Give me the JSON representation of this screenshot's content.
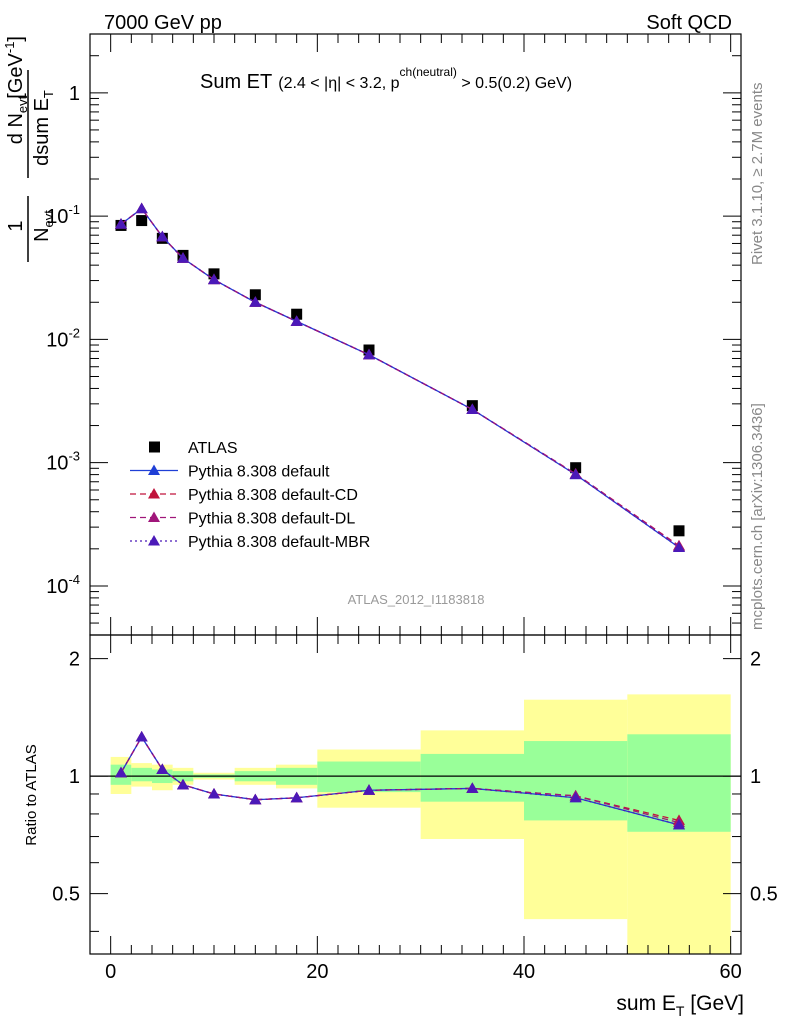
{
  "header": {
    "left": "7000 GeV pp",
    "right": "Soft QCD"
  },
  "title": {
    "main": "Sum ET",
    "detail_pre": "(2.4 < |η| < 3.2, p",
    "detail_sup": "ch(neutral)",
    "detail_post": " > 0.5(0.2) GeV)"
  },
  "side_labels": {
    "rivet": "Rivet 3.1.10, ≥ 2.7M events",
    "mcplots": "mcplots.cern.ch [arXiv:1306.3436]"
  },
  "analysis_id": "ATLAS_2012_I1183818",
  "y_label": {
    "frac_num": "1",
    "frac_den_main": "N",
    "frac_den_sub": "evt",
    "deriv_num_main": "d N",
    "deriv_num_sub": "evt",
    "deriv_den_main": "dsum E",
    "deriv_den_sub": "T",
    "unit_main": "[GeV",
    "unit_sup": "-1",
    "unit_close": "]"
  },
  "ratio_label": "Ratio to ATLAS",
  "x_label": {
    "main": "sum E",
    "sub": "T",
    "unit": " [GeV]"
  },
  "legend": [
    {
      "label": "ATLAS",
      "color": "#000000",
      "marker": "square",
      "line": "none"
    },
    {
      "label": "Pythia 8.308 default",
      "color": "#1f3fd6",
      "marker": "triangle",
      "line": "solid"
    },
    {
      "label": "Pythia 8.308 default-CD",
      "color": "#c0143c",
      "marker": "triangle",
      "line": "dashed"
    },
    {
      "label": "Pythia 8.308 default-DL",
      "color": "#a0167a",
      "marker": "triangle",
      "line": "dashed"
    },
    {
      "label": "Pythia 8.308 default-MBR",
      "color": "#4b19b8",
      "marker": "triangle",
      "line": "dotted"
    }
  ],
  "chart_data": {
    "type": "scatter",
    "x_edges": [
      0,
      2,
      4,
      6,
      8,
      12,
      16,
      20,
      30,
      40,
      50,
      60
    ],
    "x": [
      1,
      3,
      5,
      7,
      10,
      14,
      18,
      25,
      35,
      45,
      55
    ],
    "xlim": [
      -2,
      61
    ],
    "ylim_main": [
      4e-05,
      3
    ],
    "ylim_ratio": [
      0.35,
      2.3
    ],
    "y_log": true,
    "main_ticks": [
      {
        "v": 1,
        "mant": "1",
        "exp": ""
      },
      {
        "v": 0.1,
        "mant": "10",
        "exp": "-1"
      },
      {
        "v": 0.01,
        "mant": "10",
        "exp": "-2"
      },
      {
        "v": 0.001,
        "mant": "10",
        "exp": "-3"
      },
      {
        "v": 0.0001,
        "mant": "10",
        "exp": "-4"
      }
    ],
    "ratio_ticks": [
      {
        "v": 2,
        "label": "2"
      },
      {
        "v": 1,
        "label": "1"
      },
      {
        "v": 0.5,
        "label": "0.5"
      }
    ],
    "x_ticks": [
      {
        "v": 0,
        "label": "0"
      },
      {
        "v": 20,
        "label": "20"
      },
      {
        "v": 40,
        "label": "40"
      },
      {
        "v": 60,
        "label": "60"
      }
    ],
    "series": [
      {
        "name": "ATLAS",
        "values": [
          0.084,
          0.092,
          0.066,
          0.048,
          0.034,
          0.023,
          0.016,
          0.0082,
          0.0029,
          0.00091,
          0.00028
        ]
      },
      {
        "name": "Pythia 8.308 default",
        "values": [
          0.086,
          0.115,
          0.068,
          0.0455,
          0.0305,
          0.02,
          0.014,
          0.0075,
          0.0027,
          0.0008,
          0.000205
        ]
      },
      {
        "name": "Pythia 8.308 default-CD",
        "values": [
          0.086,
          0.115,
          0.068,
          0.0455,
          0.0305,
          0.02,
          0.014,
          0.0075,
          0.0027,
          0.00081,
          0.000212
        ]
      },
      {
        "name": "Pythia 8.308 default-DL",
        "values": [
          0.086,
          0.115,
          0.068,
          0.0455,
          0.0305,
          0.02,
          0.014,
          0.0075,
          0.0027,
          0.00081,
          0.00021
        ]
      },
      {
        "name": "Pythia 8.308 default-MBR",
        "values": [
          0.086,
          0.115,
          0.068,
          0.0455,
          0.0305,
          0.02,
          0.014,
          0.0075,
          0.0027,
          0.0008,
          0.000205
        ]
      }
    ],
    "ratios": [
      {
        "name": "Pythia 8.308 default",
        "values": [
          1.02,
          1.26,
          1.04,
          0.95,
          0.9,
          0.87,
          0.88,
          0.92,
          0.93,
          0.88,
          0.75
        ]
      },
      {
        "name": "Pythia 8.308 default-CD",
        "values": [
          1.02,
          1.26,
          1.04,
          0.95,
          0.9,
          0.87,
          0.88,
          0.92,
          0.93,
          0.89,
          0.77
        ]
      },
      {
        "name": "Pythia 8.308 default-DL",
        "values": [
          1.02,
          1.26,
          1.04,
          0.95,
          0.9,
          0.87,
          0.88,
          0.92,
          0.93,
          0.89,
          0.76
        ]
      },
      {
        "name": "Pythia 8.308 default-MBR",
        "values": [
          1.02,
          1.26,
          1.04,
          0.95,
          0.9,
          0.87,
          0.88,
          0.92,
          0.93,
          0.88,
          0.75
        ]
      }
    ],
    "band_green": [
      [
        0.95,
        1.07
      ],
      [
        0.97,
        1.05
      ],
      [
        0.96,
        1.04
      ],
      [
        0.97,
        1.03
      ],
      [
        0.99,
        1.01
      ],
      [
        0.97,
        1.03
      ],
      [
        0.95,
        1.05
      ],
      [
        0.91,
        1.09
      ],
      [
        0.86,
        1.14
      ],
      [
        0.77,
        1.23
      ],
      [
        0.72,
        1.28
      ]
    ],
    "band_yellow": [
      [
        0.9,
        1.12
      ],
      [
        0.94,
        1.08
      ],
      [
        0.92,
        1.07
      ],
      [
        0.95,
        1.05
      ],
      [
        0.98,
        1.02
      ],
      [
        0.95,
        1.05
      ],
      [
        0.93,
        1.07
      ],
      [
        0.83,
        1.17
      ],
      [
        0.69,
        1.31
      ],
      [
        0.43,
        1.57
      ],
      [
        0.33,
        1.62
      ]
    ],
    "ratio_ref": 1
  }
}
